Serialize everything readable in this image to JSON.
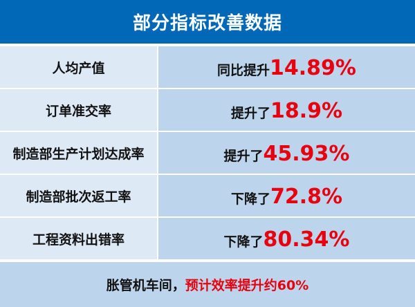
{
  "title": "部分指标改善数据",
  "rows": [
    {
      "metric": "人均产值",
      "prefix": "同比提升",
      "value": "14.89%"
    },
    {
      "metric": "订单准交率",
      "prefix": "提升了",
      "value": "18.9%"
    },
    {
      "metric": "制造部生产计划达成率",
      "prefix": "提升了",
      "value": "45.93%"
    },
    {
      "metric": "制造部批次返工率",
      "prefix": "下降了",
      "value": "72.8%"
    },
    {
      "metric": "工程资料出错率",
      "prefix": "下降了",
      "value": "80.34%"
    }
  ],
  "footer": {
    "black": "胀管机车间，",
    "red": "预计效率提升约60%"
  },
  "colors": {
    "header": "#0068b7",
    "highlight": "#e8000e",
    "left_cell": "#dde9f5",
    "right_cell": "#bdd5ec"
  }
}
